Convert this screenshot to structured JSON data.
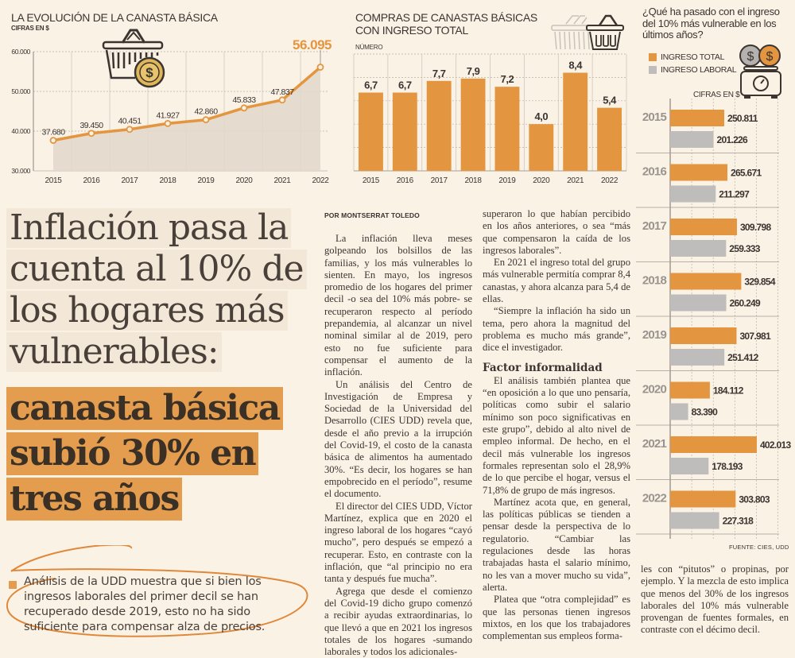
{
  "colors": {
    "background": "#fbf2e6",
    "orange": "#e4953f",
    "gray": "#bfbcbc",
    "area_fill": "#e2d8cc",
    "text": "#3b3430",
    "headline_highlight": "#e49d4f"
  },
  "chart_data": [
    {
      "type": "line",
      "title": "LA EVOLUCIÓN DE LA CANASTA BÁSICA",
      "subtitle": "CIFRAS EN $",
      "icon": "basket-coin-icon",
      "categories": [
        "2015",
        "2016",
        "2017",
        "2018",
        "2019",
        "2020",
        "2021",
        "2022"
      ],
      "values": [
        37680,
        39450,
        40451,
        41927,
        42860,
        45833,
        47837,
        56095
      ],
      "data_labels": [
        "37.680",
        "39.450",
        "40.451",
        "41.927",
        "42.860",
        "45.833",
        "47.837",
        "56.095"
      ],
      "ylim": [
        30000,
        60000
      ],
      "yticks": [
        30000,
        40000,
        50000,
        60000
      ],
      "ytick_labels": [
        "30.000",
        "40.000",
        "50.000",
        "60.000"
      ],
      "grid": true,
      "area_under_line": true
    },
    {
      "type": "bar",
      "title_line1": "COMPRAS DE CANASTAS BÁSICAS",
      "title_line2": "CON INGRESO TOTAL",
      "subtitle": "NÚMERO",
      "icon": "baskets-motion-icon",
      "categories": [
        "2015",
        "2016",
        "2017",
        "2018",
        "2019",
        "2020",
        "2021",
        "2022"
      ],
      "values": [
        6.7,
        6.7,
        7.7,
        7.9,
        7.2,
        4.0,
        8.4,
        5.4
      ],
      "data_labels": [
        "6,7",
        "6,7",
        "7,7",
        "7,9",
        "7,2",
        "4,0",
        "8,4",
        "5,4"
      ],
      "ylim": [
        0,
        10
      ],
      "grid": true
    },
    {
      "type": "bar",
      "orientation": "horizontal",
      "title": "¿Qué ha pasado con el ingreso del 10% más vulnerable en los últimos años?",
      "subtitle": "CIFRAS EN $",
      "icon": "coins-scale-icon",
      "legend": [
        "INGRESO TOTAL",
        "INGRESO LABORAL"
      ],
      "legend_position": "top-left",
      "categories": [
        "2015",
        "2016",
        "2017",
        "2018",
        "2019",
        "2020",
        "2021",
        "2022"
      ],
      "series": [
        {
          "name": "INGRESO TOTAL",
          "values": [
            250811,
            265671,
            309798,
            329854,
            307981,
            184112,
            402013,
            303803
          ],
          "labels": [
            "250.811",
            "265.671",
            "309.798",
            "329.854",
            "307.981",
            "184.112",
            "402.013",
            "303.803"
          ]
        },
        {
          "name": "INGRESO LABORAL",
          "values": [
            201226,
            211297,
            259333,
            260249,
            251412,
            83390,
            178193,
            227318
          ],
          "labels": [
            "201.226",
            "211.297",
            "259.333",
            "260.249",
            "251.412",
            "83.390",
            "178.193",
            "227.318"
          ]
        }
      ],
      "xlim": [
        0,
        500000
      ],
      "grid": true,
      "source": "FUENTE: CIES, UDD"
    }
  ],
  "article": {
    "headline_light": [
      "Inflación pasa la",
      "cuenta al 10% de",
      "los hogares más",
      "vulnerables:"
    ],
    "headline_bold": [
      "canasta básica",
      "subió 30% en",
      "tres años"
    ],
    "lede": [
      "Análisis de la UDD muestra que si bien los",
      "ingresos laborales del primer decil se han",
      "recuperado desde 2019, esto no ha sido",
      "suficiente para compensar alza de precios."
    ],
    "byline": "POR MONTSERRAT TOLEDO",
    "col1": [
      "La inflación lleva meses golpeando los bolsillos de las familias, y los más vulnerables lo sienten. En mayo, los ingresos promedio de los hogares del primer decil -o sea del 10% más pobre- se recuperaron respecto al período prepandemia, al alcanzar un nivel nominal similar al de 2019, pero esto no fue suficiente para compensar el aumento de la inflación.",
      "Un análisis del Centro de Investigación de Empresa y Sociedad de la Universidad del Desarrollo (CIES UDD) revela que, desde el año previo a la irrupción del Covid-19, el costo de la canasta básica de alimentos ha aumentado 30%. “Es decir, los hogares se han empobrecido en el período”, resume el documento.",
      "El director del CIES UDD, Víctor Martínez, explica que en 2020 el ingreso laboral de los hogares “cayó mucho”, pero después se empezó a recuperar. Esto, en contraste con la inflación, que “al principio no era tanta y después fue mucha”.",
      "Agrega que desde el comienzo del Covid-19 dicho grupo comenzó a recibir ayudas extraordinarias, lo que llevó a que en 2021 los ingresos totales de los hogares -sumando laborales y todos los adicionales-"
    ],
    "col2_start": "superaron lo que habían percibido en los años anteriores, o sea “más que compensaron la caída de los ingresos laborales”.",
    "col2": [
      "En 2021 el ingreso total del grupo más vulnerable permitía comprar 8,4 canastas, y ahora alcanza para 5,4 de ellas.",
      "“Siempre la inflación ha sido un tema, pero ahora la magnitud del problema es mucho más grande”, dice el investigador."
    ],
    "subhead": "Factor informalidad",
    "col2b": [
      "El análisis también plantea que “en oposición a lo que uno pensaría, políticas como subir el salario mínimo son poco significativas en este grupo”, debido al alto nivel de empleo informal. De hecho, en el decil más vulnerable los ingresos formales representan solo el 28,9% de lo que percibe el hogar, versus el 71,8% de grupo de más ingresos.",
      "Martínez acota que, en general, las políticas públicas se tienden a pensar desde la perspectiva de lo regulatorio. “Cambiar las regulaciones desde las horas trabajadas hasta el salario mínimo, no les van a mover mucho su vida”, alerta.",
      "Platea que “otra complejidad” es que las personas tienen ingresos mixtos, en los que los trabajadores complementan sus empleos forma-"
    ],
    "col3": "les con “pitutos” o propinas, por ejemplo. Y la mezcla de esto implica que menos del 30% de los ingresos laborales del 10% más vulnerable provengan de fuentes formales, en contraste con el décimo decil."
  }
}
